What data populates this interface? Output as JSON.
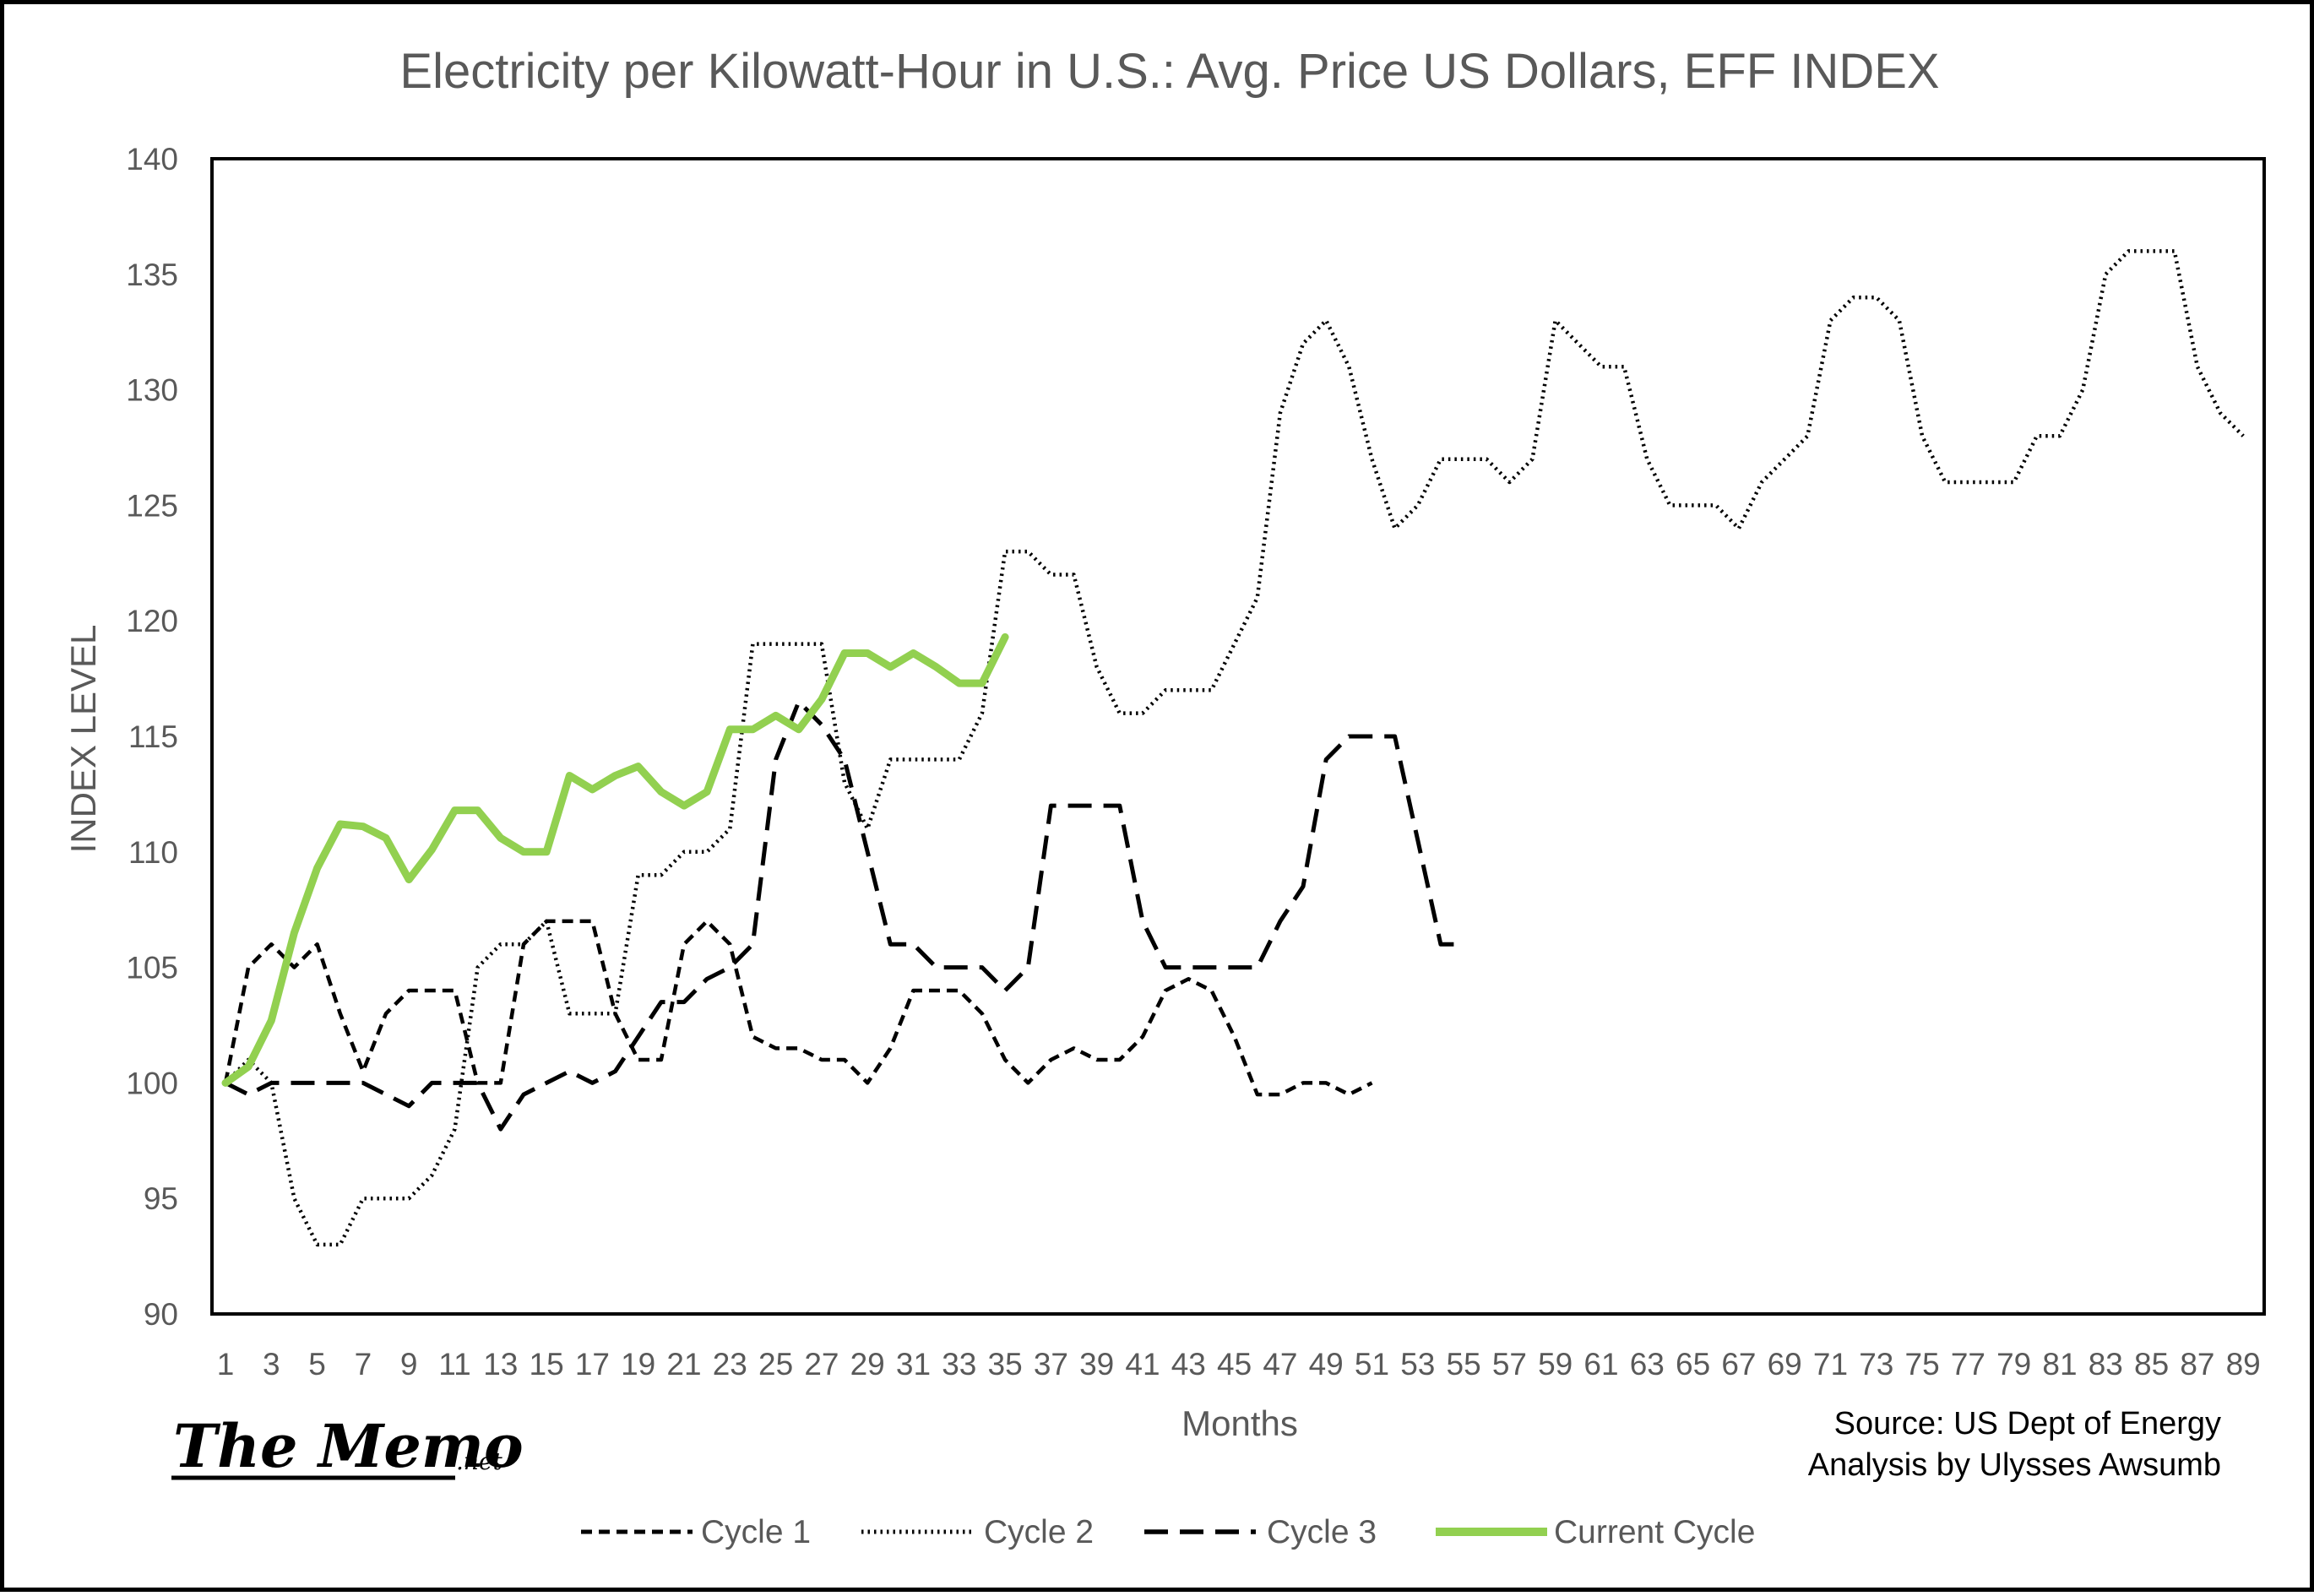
{
  "chart_data": {
    "type": "line",
    "title": "Electricity per Kilowatt-Hour in U.S.:  Avg. Price US Dollars, EFF INDEX",
    "xlabel": "Months",
    "ylabel": "INDEX LEVEL",
    "xlim": [
      1,
      90
    ],
    "ylim": [
      90,
      140
    ],
    "yticks": [
      90,
      95,
      100,
      105,
      110,
      115,
      120,
      125,
      130,
      135,
      140
    ],
    "xtick_labels": [
      "1",
      "3",
      "5",
      "7",
      "9",
      "11",
      "13",
      "15",
      "17",
      "19",
      "21",
      "23",
      "25",
      "27",
      "29",
      "31",
      "33",
      "35",
      "37",
      "39",
      "41",
      "43",
      "45",
      "47",
      "49",
      "51",
      "53",
      "55",
      "57",
      "59",
      "61",
      "63",
      "65",
      "67",
      "69",
      "71",
      "73",
      "75",
      "77",
      "79",
      "81",
      "83",
      "85",
      "87",
      "89"
    ],
    "grid": false,
    "legend_position": "bottom",
    "series": [
      {
        "name": "Cycle 1",
        "color": "#000000",
        "style": "short-dash",
        "values": [
          100,
          105,
          106,
          105,
          106,
          103,
          100.5,
          103,
          104,
          104,
          104,
          100,
          100,
          106,
          107,
          107,
          107,
          103,
          101,
          101,
          106,
          107,
          106,
          102,
          101.5,
          101.5,
          101,
          101,
          100,
          101.5,
          104,
          104,
          104,
          103,
          101,
          100,
          101,
          101.5,
          101,
          101,
          102,
          104,
          104.5,
          104,
          102,
          99.5,
          99.5,
          100,
          100,
          99.5,
          100
        ]
      },
      {
        "name": "Cycle 2",
        "color": "#000000",
        "style": "dotted",
        "values": [
          100,
          101,
          100,
          95,
          93,
          93,
          95,
          95,
          95,
          96,
          98,
          105,
          106,
          106,
          107,
          103,
          103,
          103,
          109,
          109,
          110,
          110,
          111,
          119,
          119,
          119,
          119,
          113,
          111,
          114,
          114,
          114,
          114,
          116,
          123,
          123,
          122,
          122,
          118,
          116,
          116,
          117,
          117,
          117,
          119,
          121,
          129,
          132,
          133,
          131,
          127,
          124,
          125,
          127,
          127,
          127,
          126,
          127,
          133,
          132,
          131,
          131,
          127,
          125,
          125,
          125,
          124,
          126,
          127,
          128,
          133,
          134,
          134,
          133,
          128,
          126,
          126,
          126,
          126,
          128,
          128,
          130,
          135,
          136,
          136,
          136,
          131,
          129,
          128
        ]
      },
      {
        "name": "Cycle 3",
        "color": "#000000",
        "style": "long-dash",
        "values": [
          100,
          99.5,
          100,
          100,
          100,
          100,
          100,
          99.5,
          99,
          100,
          100,
          100,
          98,
          99.5,
          100,
          100.5,
          100,
          100.5,
          102,
          103.5,
          103.5,
          104.5,
          105,
          106,
          114,
          116.5,
          115.5,
          114,
          110,
          106,
          106,
          105,
          105,
          105,
          104,
          105,
          112,
          112,
          112,
          112,
          107,
          105,
          105,
          105,
          105,
          105,
          107,
          108.5,
          114,
          115,
          115,
          115,
          110.5,
          106,
          106
        ]
      },
      {
        "name": "Current Cycle",
        "color": "#92D050",
        "style": "solid",
        "values": [
          100,
          100.7,
          102.7,
          106.5,
          109.3,
          111.2,
          111.1,
          110.6,
          108.8,
          110.1,
          111.8,
          111.8,
          110.6,
          110,
          110,
          113.3,
          112.7,
          113.3,
          113.7,
          112.6,
          112,
          112.6,
          115.3,
          115.3,
          115.9,
          115.3,
          116.6,
          118.6,
          118.6,
          118,
          118.6,
          118,
          117.3,
          117.3,
          119.3
        ]
      }
    ]
  },
  "source": {
    "line1": "Source: US Dept of Energy",
    "line2": "Analysis by Ulysses Awsumb"
  },
  "logo": {
    "main": "The Memo",
    "sub": ".net"
  }
}
